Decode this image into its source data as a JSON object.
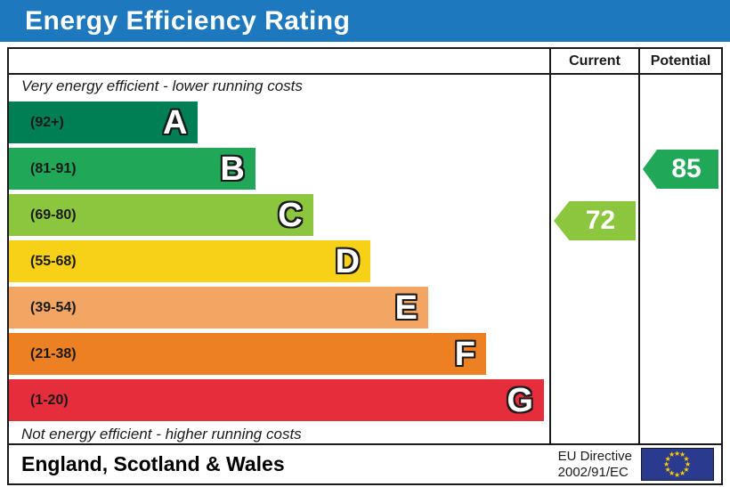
{
  "title": "Energy Efficiency Rating",
  "columns": {
    "current": "Current",
    "potential": "Potential"
  },
  "footer": {
    "region": "England, Scotland & Wales",
    "directive_line1": "EU Directive",
    "directive_line2": "2002/91/EC"
  },
  "colors": {
    "title_bar_blue": "#1e78be",
    "border_black": "#1a1a1a",
    "eu_flag_blue": "#2a3b8f",
    "eu_star_yellow": "#ffcc00"
  },
  "chart_data": {
    "type": "bar",
    "title": "Energy Efficiency Rating",
    "top_label": "Very energy efficient - lower running costs",
    "bottom_label": "Not energy efficient - higher running costs",
    "bands": [
      {
        "letter": "A",
        "range": "(92+)",
        "min": 92,
        "max": 100,
        "color": "#007f54",
        "width_pct": 35.0
      },
      {
        "letter": "B",
        "range": "(81-91)",
        "min": 81,
        "max": 91,
        "color": "#20a757",
        "width_pct": 45.6
      },
      {
        "letter": "C",
        "range": "(69-80)",
        "min": 69,
        "max": 80,
        "color": "#8cc63f",
        "width_pct": 56.3
      },
      {
        "letter": "D",
        "range": "(55-68)",
        "min": 55,
        "max": 68,
        "color": "#f7d117",
        "width_pct": 66.9
      },
      {
        "letter": "E",
        "range": "(39-54)",
        "min": 39,
        "max": 54,
        "color": "#f3a564",
        "width_pct": 77.6
      },
      {
        "letter": "F",
        "range": "(21-38)",
        "min": 21,
        "max": 38,
        "color": "#ec8023",
        "width_pct": 88.3
      },
      {
        "letter": "G",
        "range": "(1-20)",
        "min": 1,
        "max": 20,
        "color": "#e52d3c",
        "width_pct": 99.0
      }
    ],
    "current": {
      "value": 72,
      "band": "C",
      "color": "#8cc63f"
    },
    "potential": {
      "value": 85,
      "band": "B",
      "color": "#20a757"
    },
    "legend_position": "none",
    "grid": false
  }
}
